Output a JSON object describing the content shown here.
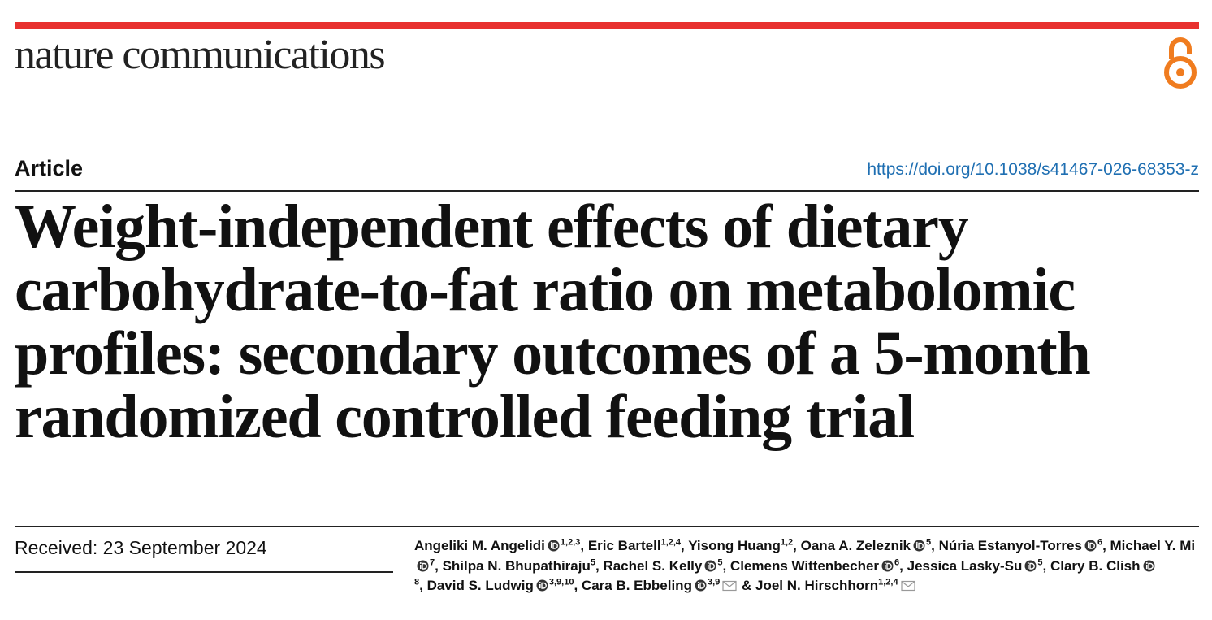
{
  "header": {
    "journal": "nature communications",
    "article_type": "Article",
    "doi": "https://doi.org/10.1038/s41467-026-68353-z"
  },
  "title": "Weight-independent effects of dietary carbohydrate-to-fat ratio on metabolomic profiles: secondary outcomes of a 5-month randomized controlled feeding trial",
  "received": "Received: 23 September 2024",
  "authors": [
    {
      "name": "Angeliki M. Angelidi",
      "orcid": true,
      "sup": "1,2,3",
      "sep": ", "
    },
    {
      "name": "Eric Bartell",
      "orcid": false,
      "sup": "1,2,4",
      "sep": ", "
    },
    {
      "name": "Yisong Huang",
      "orcid": false,
      "sup": "1,2",
      "sep": ", "
    },
    {
      "name": "Oana A. Zeleznik",
      "orcid": true,
      "sup": "5",
      "sep": ", "
    },
    {
      "name": "Núria Estanyol-Torres",
      "orcid": true,
      "sup": "6",
      "sep": ", "
    },
    {
      "name": "Michael Y. Mi",
      "orcid": true,
      "sup": "7",
      "sep": ", "
    },
    {
      "name": "Shilpa N. Bhupathiraju",
      "orcid": false,
      "sup": "5",
      "sep": ", "
    },
    {
      "name": "Rachel S. Kelly",
      "orcid": true,
      "sup": "5",
      "sep": ", "
    },
    {
      "name": "Clemens Wittenbecher",
      "orcid": true,
      "sup": "6",
      "sep": ", "
    },
    {
      "name": "Jessica Lasky-Su",
      "orcid": true,
      "sup": "5",
      "sep": ", "
    },
    {
      "name": "Clary B. Clish",
      "orcid": true,
      "sup": "8",
      "sep": ", "
    },
    {
      "name": "David S. Ludwig",
      "orcid": true,
      "sup": "3,9,10",
      "sep": ", "
    },
    {
      "name": "Cara B. Ebbeling",
      "orcid": true,
      "sup": "3,9",
      "corresponding": true,
      "sep": " & "
    },
    {
      "name": "Joel N. Hirschhorn",
      "orcid": false,
      "sup": "1,2,4",
      "corresponding": true
    }
  ]
}
